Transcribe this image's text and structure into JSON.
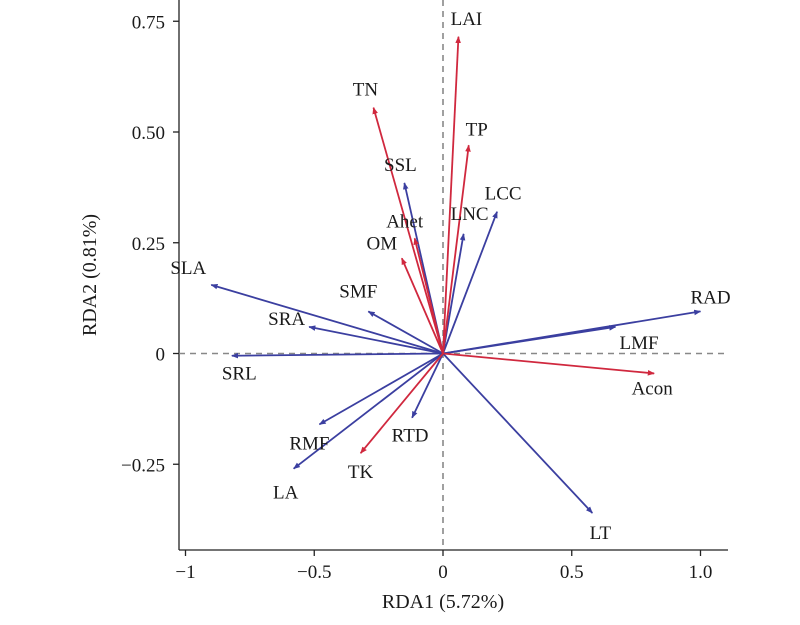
{
  "chart_data": {
    "type": "scatter",
    "subtype": "rda-biplot",
    "title": "",
    "xlabel": "RDA1 (5.72%)",
    "ylabel": "RDA2 (0.81%)",
    "xlim": [
      -1.03,
      1.11
    ],
    "ylim": [
      -0.44,
      0.79
    ],
    "x_ticks": [
      -1,
      -0.5,
      0,
      0.5,
      1
    ],
    "x_tick_labels": [
      "−1",
      "−0.5",
      "0",
      "0.5",
      "1.0"
    ],
    "y_ticks": [
      0.75,
      0.5,
      0.25,
      0,
      -0.25
    ],
    "y_tick_labels": [
      "0.75",
      "0.50",
      "0.25",
      "0",
      "−0.25"
    ],
    "reference_lines": {
      "x": 0,
      "y": 0,
      "style": "dashed"
    },
    "colors": {
      "response": "#3b3fa0",
      "explanatory": "#d0283e",
      "reference": "#888888"
    },
    "series": [
      {
        "name": "response",
        "color": "#3b3fa0",
        "arrows": [
          {
            "label": "SLA",
            "x": -0.9,
            "y": 0.155
          },
          {
            "label": "SMF",
            "x": -0.29,
            "y": 0.095
          },
          {
            "label": "SRA",
            "x": -0.52,
            "y": 0.06
          },
          {
            "label": "SRL",
            "x": -0.82,
            "y": -0.005
          },
          {
            "label": "RMF",
            "x": -0.48,
            "y": -0.16
          },
          {
            "label": "LA",
            "x": -0.58,
            "y": -0.26
          },
          {
            "label": "RTD",
            "x": -0.12,
            "y": -0.145
          },
          {
            "label": "SSL",
            "x": -0.15,
            "y": 0.385
          },
          {
            "label": "LNC",
            "x": 0.08,
            "y": 0.27
          },
          {
            "label": "LCC",
            "x": 0.21,
            "y": 0.32
          },
          {
            "label": "RAD",
            "x": 1.0,
            "y": 0.095
          },
          {
            "label": "LMF",
            "x": 0.67,
            "y": 0.06
          },
          {
            "label": "LT",
            "x": 0.58,
            "y": -0.36
          }
        ]
      },
      {
        "name": "explanatory",
        "color": "#d0283e",
        "arrows": [
          {
            "label": "LAI",
            "x": 0.06,
            "y": 0.715
          },
          {
            "label": "TN",
            "x": -0.27,
            "y": 0.555
          },
          {
            "label": "TP",
            "x": 0.1,
            "y": 0.47
          },
          {
            "label": "Ahet",
            "x": -0.11,
            "y": 0.26
          },
          {
            "label": "OM",
            "x": -0.16,
            "y": 0.215
          },
          {
            "label": "Acon",
            "x": 0.82,
            "y": -0.045
          },
          {
            "label": "TK",
            "x": -0.32,
            "y": -0.225
          }
        ]
      }
    ]
  }
}
